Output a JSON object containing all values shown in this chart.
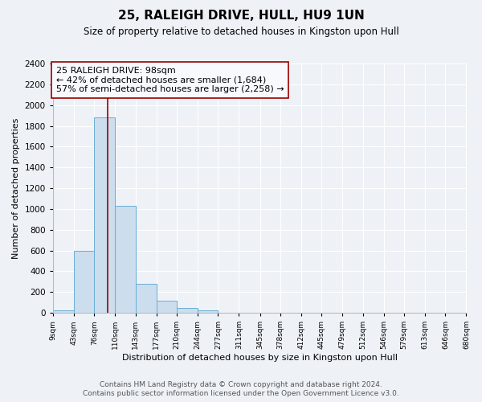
{
  "title": "25, RALEIGH DRIVE, HULL, HU9 1UN",
  "subtitle": "Size of property relative to detached houses in Kingston upon Hull",
  "xlabel": "Distribution of detached houses by size in Kingston upon Hull",
  "ylabel": "Number of detached properties",
  "bin_edges": [
    9,
    43,
    76,
    110,
    143,
    177,
    210,
    244,
    277,
    311,
    345,
    378,
    412,
    445,
    479,
    512,
    546,
    579,
    613,
    646,
    680
  ],
  "bin_counts": [
    20,
    600,
    1880,
    1030,
    280,
    115,
    50,
    20,
    0,
    0,
    0,
    0,
    0,
    0,
    0,
    0,
    0,
    0,
    0,
    0
  ],
  "bar_color": "#ccdded",
  "bar_edgecolor": "#6aaed6",
  "vline_x": 98,
  "vline_color": "#990000",
  "annotation_title": "25 RALEIGH DRIVE: 98sqm",
  "annotation_line1": "← 42% of detached houses are smaller (1,684)",
  "annotation_line2": "57% of semi-detached houses are larger (2,258) →",
  "annotation_box_edgecolor": "#990000",
  "annotation_box_facecolor": "#f7f9fc",
  "ylim": [
    0,
    2400
  ],
  "yticks": [
    0,
    200,
    400,
    600,
    800,
    1000,
    1200,
    1400,
    1600,
    1800,
    2000,
    2200,
    2400
  ],
  "tick_labels": [
    "9sqm",
    "43sqm",
    "76sqm",
    "110sqm",
    "143sqm",
    "177sqm",
    "210sqm",
    "244sqm",
    "277sqm",
    "311sqm",
    "345sqm",
    "378sqm",
    "412sqm",
    "445sqm",
    "479sqm",
    "512sqm",
    "546sqm",
    "579sqm",
    "613sqm",
    "646sqm",
    "680sqm"
  ],
  "footer_line1": "Contains HM Land Registry data © Crown copyright and database right 2024.",
  "footer_line2": "Contains public sector information licensed under the Open Government Licence v3.0.",
  "background_color": "#eef2f7",
  "plot_background_color": "#eef2f7",
  "grid_color": "#ffffff",
  "title_fontsize": 11,
  "subtitle_fontsize": 8.5,
  "annotation_fontsize": 8,
  "footer_fontsize": 6.5,
  "ylabel_fontsize": 8,
  "xlabel_fontsize": 8
}
